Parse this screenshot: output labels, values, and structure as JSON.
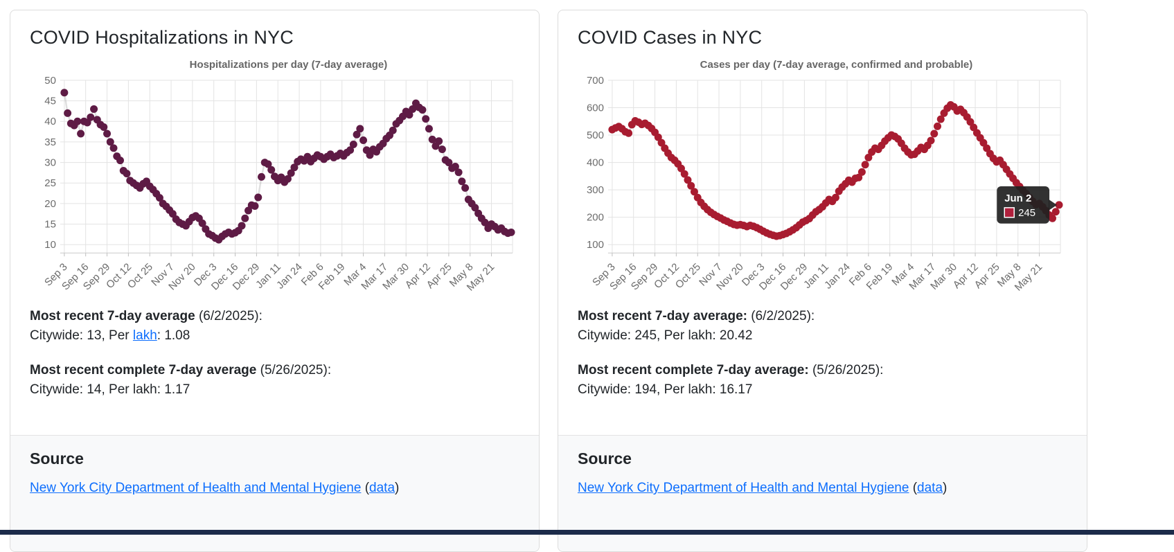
{
  "page": {
    "bottom_bar_color": "#1c2b4a"
  },
  "cards": [
    {
      "title": "COVID Hospitalizations in NYC",
      "stats": [
        {
          "bold": "Most recent 7-day average",
          "rest": " (6/2/2025):",
          "value_prefix": "Citywide: 13, Per ",
          "value_link": "lakh",
          "value_suffix": ": 1.08"
        },
        {
          "bold": "Most recent complete 7-day average",
          "rest": " (5/26/2025):",
          "value_prefix": "Citywide: 14, Per lakh: 1.17",
          "value_link": "",
          "value_suffix": ""
        }
      ],
      "source_heading": "Source",
      "source_link": "New York City Department of Health and Mental Hygiene",
      "source_open": "(",
      "source_data_link": "data",
      "source_close": ")"
    },
    {
      "title": "COVID Cases in NYC",
      "stats": [
        {
          "bold": "Most recent 7-day average:",
          "rest": " (6/2/2025):",
          "value_prefix": "Citywide: 245, Per lakh: 20.42",
          "value_link": "",
          "value_suffix": ""
        },
        {
          "bold": "Most recent complete 7-day average:",
          "rest": " (5/26/2025):",
          "value_prefix": "Citywide: 194, Per lakh: 16.17",
          "value_link": "",
          "value_suffix": ""
        }
      ],
      "source_heading": "Source",
      "source_link": "New York City Department of Health and Mental Hygiene",
      "source_open": "(",
      "source_data_link": "data",
      "source_close": ")"
    }
  ],
  "chart_data": [
    {
      "type": "scatter",
      "title": "Hospitalizations per day (7-day average)",
      "xlabel": "",
      "ylabel": "",
      "x_tick_labels": [
        "Sep 3",
        "Sep 16",
        "Sep 29",
        "Oct 12",
        "Oct 25",
        "Nov 7",
        "Nov 20",
        "Dec 3",
        "Dec 16",
        "Dec 29",
        "Jan 11",
        "Jan 24",
        "Feb 6",
        "Feb 19",
        "Mar 4",
        "Mar 17",
        "Mar 30",
        "Apr 12",
        "Apr 25",
        "May 8",
        "May 21"
      ],
      "x_tick_interval_days": 13,
      "x_total_days": 272,
      "x_start_date": "Sep 3",
      "x_end_date": "Jun 2",
      "day_step": 2,
      "ylim": [
        10,
        50
      ],
      "ytick_step": 5,
      "grid": true,
      "point_color": "#5e1b45",
      "values": [
        47,
        42,
        39.5,
        39,
        40,
        37,
        40,
        39.7,
        41,
        43,
        40.4,
        39.2,
        38.6,
        37,
        35,
        33.5,
        31.5,
        30.5,
        28,
        27.3,
        25.6,
        25,
        24.4,
        23.8,
        24.8,
        25.4,
        24.2,
        23.4,
        22.4,
        21.4,
        20,
        19.3,
        18.4,
        17.5,
        16.2,
        15.4,
        15,
        14.6,
        15.6,
        16.6,
        17,
        16.4,
        15.2,
        13.8,
        12.6,
        12.2,
        11.6,
        11.2,
        12,
        12.6,
        13,
        12.6,
        12.9,
        13.4,
        14.6,
        16.4,
        18.3,
        19.6,
        19.4,
        21.5,
        26.5,
        30,
        29.6,
        28.2,
        26.6,
        25.6,
        26.4,
        25.2,
        26,
        27.4,
        28.8,
        30.2,
        30.8,
        30.4,
        31.4,
        30.2,
        31,
        31.8,
        31.4,
        30.8,
        31.4,
        32,
        31.2,
        31.6,
        32.2,
        31.6,
        32.4,
        33,
        34.4,
        36.8,
        38.2,
        35.4,
        33,
        31.8,
        33.2,
        32.6,
        33.8,
        34.6,
        35.8,
        36.6,
        37.8,
        39.4,
        40.2,
        41.2,
        42.4,
        41.6,
        43,
        44.4,
        43.4,
        42.8,
        40.6,
        38.2,
        35.6,
        34,
        35.2,
        33.2,
        30.6,
        30,
        28.6,
        29,
        27.6,
        25.4,
        23.8,
        21,
        20,
        19,
        17.6,
        16.4,
        15.4,
        14,
        15,
        14.4,
        13.6,
        14,
        13.2,
        12.8,
        13
      ]
    },
    {
      "type": "scatter",
      "title": "Cases per day (7-day average, confirmed and probable)",
      "xlabel": "",
      "ylabel": "",
      "x_tick_labels": [
        "Sep 3",
        "Sep 16",
        "Sep 29",
        "Oct 12",
        "Oct 25",
        "Nov 7",
        "Nov 20",
        "Dec 3",
        "Dec 16",
        "Dec 29",
        "Jan 11",
        "Jan 24",
        "Feb 6",
        "Feb 19",
        "Mar 4",
        "Mar 17",
        "Mar 30",
        "Apr 12",
        "Apr 25",
        "May 8",
        "May 21"
      ],
      "x_tick_interval_days": 13,
      "x_total_days": 272,
      "x_start_date": "Sep 3",
      "x_end_date": "Jun 2",
      "day_step": 2,
      "ylim": [
        100,
        700
      ],
      "ytick_step": 100,
      "grid": true,
      "point_color": "#a81c30",
      "values": [
        520,
        526,
        531,
        523,
        512,
        507,
        538,
        552,
        547,
        539,
        543,
        535,
        524,
        510,
        492,
        472,
        452,
        434,
        418,
        408,
        395,
        378,
        358,
        336,
        315,
        293,
        272,
        254,
        240,
        228,
        218,
        210,
        203,
        197,
        190,
        185,
        179,
        174,
        171,
        173,
        170,
        166,
        170,
        167,
        162,
        156,
        149,
        143,
        138,
        134,
        131,
        133,
        137,
        141,
        147,
        154,
        162,
        172,
        182,
        188,
        195,
        208,
        220,
        228,
        238,
        252,
        265,
        258,
        272,
        295,
        310,
        322,
        335,
        328,
        342,
        345,
        365,
        392,
        418,
        438,
        452,
        448,
        462,
        478,
        490,
        500,
        495,
        486,
        470,
        452,
        438,
        428,
        430,
        442,
        455,
        448,
        462,
        480,
        505,
        532,
        558,
        580,
        598,
        610,
        603,
        588,
        594,
        582,
        566,
        548,
        528,
        508,
        490,
        472,
        452,
        432,
        415,
        402,
        408,
        392,
        375,
        358,
        342,
        326,
        312,
        298,
        286,
        272,
        258,
        246,
        250,
        238,
        224,
        208,
        196,
        220,
        245
      ],
      "tooltip": {
        "title": "Jun 2",
        "value": "245",
        "point_day": 272,
        "swatch_color": "#b0203c",
        "bg_color": "rgba(33,33,33,0.92)"
      }
    }
  ]
}
